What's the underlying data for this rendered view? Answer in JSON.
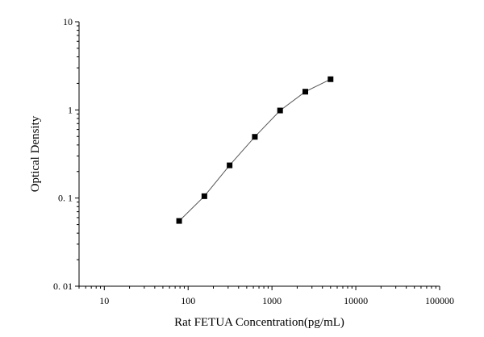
{
  "chart_data": {
    "type": "scatter",
    "xlabel": "Rat FETUA Concentration(pg/mL)",
    "ylabel": "Optical Density",
    "x_scale": "log",
    "y_scale": "log",
    "xlim": [
      5,
      100000
    ],
    "ylim": [
      0.01,
      10
    ],
    "x_ticks": [
      {
        "value": 10,
        "label": "10"
      },
      {
        "value": 100,
        "label": "100"
      },
      {
        "value": 1000,
        "label": "1000"
      },
      {
        "value": 10000,
        "label": "10000"
      },
      {
        "value": 100000,
        "label": "100000"
      }
    ],
    "y_ticks": [
      {
        "value": 0.01,
        "label": "0. 01"
      },
      {
        "value": 0.1,
        "label": "0. 1"
      },
      {
        "value": 1,
        "label": "1"
      },
      {
        "value": 10,
        "label": "10"
      }
    ],
    "grid": false,
    "legend": "none",
    "marker": "square",
    "connect_points": true,
    "colors": {
      "marker": "#000000",
      "line": "#555555",
      "axis": "#000000"
    },
    "series": [
      {
        "x": [
          78.125,
          156.25,
          312.5,
          625,
          1250,
          2500,
          5000
        ],
        "y": [
          0.055,
          0.105,
          0.235,
          0.495,
          0.985,
          1.61,
          2.23
        ]
      }
    ]
  }
}
